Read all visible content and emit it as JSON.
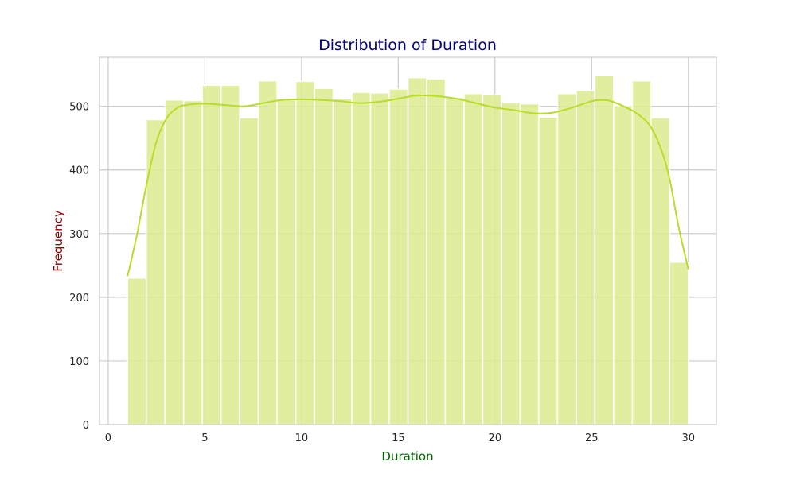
{
  "chart_data": {
    "type": "bar",
    "subtype": "histogram-with-kde",
    "title": "Distribution of Duration",
    "xlabel": "Duration",
    "ylabel": "Frequency",
    "xlim": [
      -0.45,
      31.45
    ],
    "ylim": [
      0,
      577
    ],
    "xticks": [
      0,
      5,
      10,
      15,
      20,
      25,
      30
    ],
    "yticks": [
      0,
      100,
      200,
      300,
      400,
      500
    ],
    "xtick_labels": [
      "0",
      "5",
      "10",
      "15",
      "20",
      "25",
      "30"
    ],
    "ytick_labels": [
      "0",
      "100",
      "200",
      "300",
      "400",
      "500"
    ],
    "grid": true,
    "bins": {
      "start": 1.0,
      "width": 0.9667,
      "values": [
        230,
        479,
        510,
        509,
        533,
        533,
        482,
        540,
        512,
        539,
        528,
        512,
        522,
        521,
        527,
        545,
        543,
        514,
        520,
        518,
        506,
        504,
        483,
        520,
        525,
        548,
        501,
        540,
        482,
        255
      ]
    },
    "kde": {
      "x": [
        1,
        1.5,
        2,
        2.5,
        3,
        3.5,
        4,
        5,
        6,
        7,
        8,
        9,
        10,
        11,
        12,
        13,
        14,
        15,
        16,
        17,
        18,
        19,
        20,
        21,
        22,
        23,
        24,
        25,
        25.5,
        26,
        27,
        27.5,
        28,
        28.5,
        29,
        29.5,
        30
      ],
      "y": [
        233,
        300,
        380,
        445,
        480,
        496,
        502,
        504,
        502,
        500,
        505,
        510,
        511,
        510,
        508,
        505,
        507,
        512,
        517,
        516,
        512,
        505,
        498,
        494,
        489,
        490,
        498,
        508,
        510,
        508,
        495,
        485,
        470,
        440,
        390,
        310,
        244
      ]
    },
    "colors": {
      "bar_fill": "#dceb8e",
      "kde_line": "#b8dc2a",
      "title": "#000080",
      "xlabel": "#006400",
      "ylabel": "#8b0000",
      "grid": "#cccccc",
      "frame": "#cccccc"
    }
  }
}
